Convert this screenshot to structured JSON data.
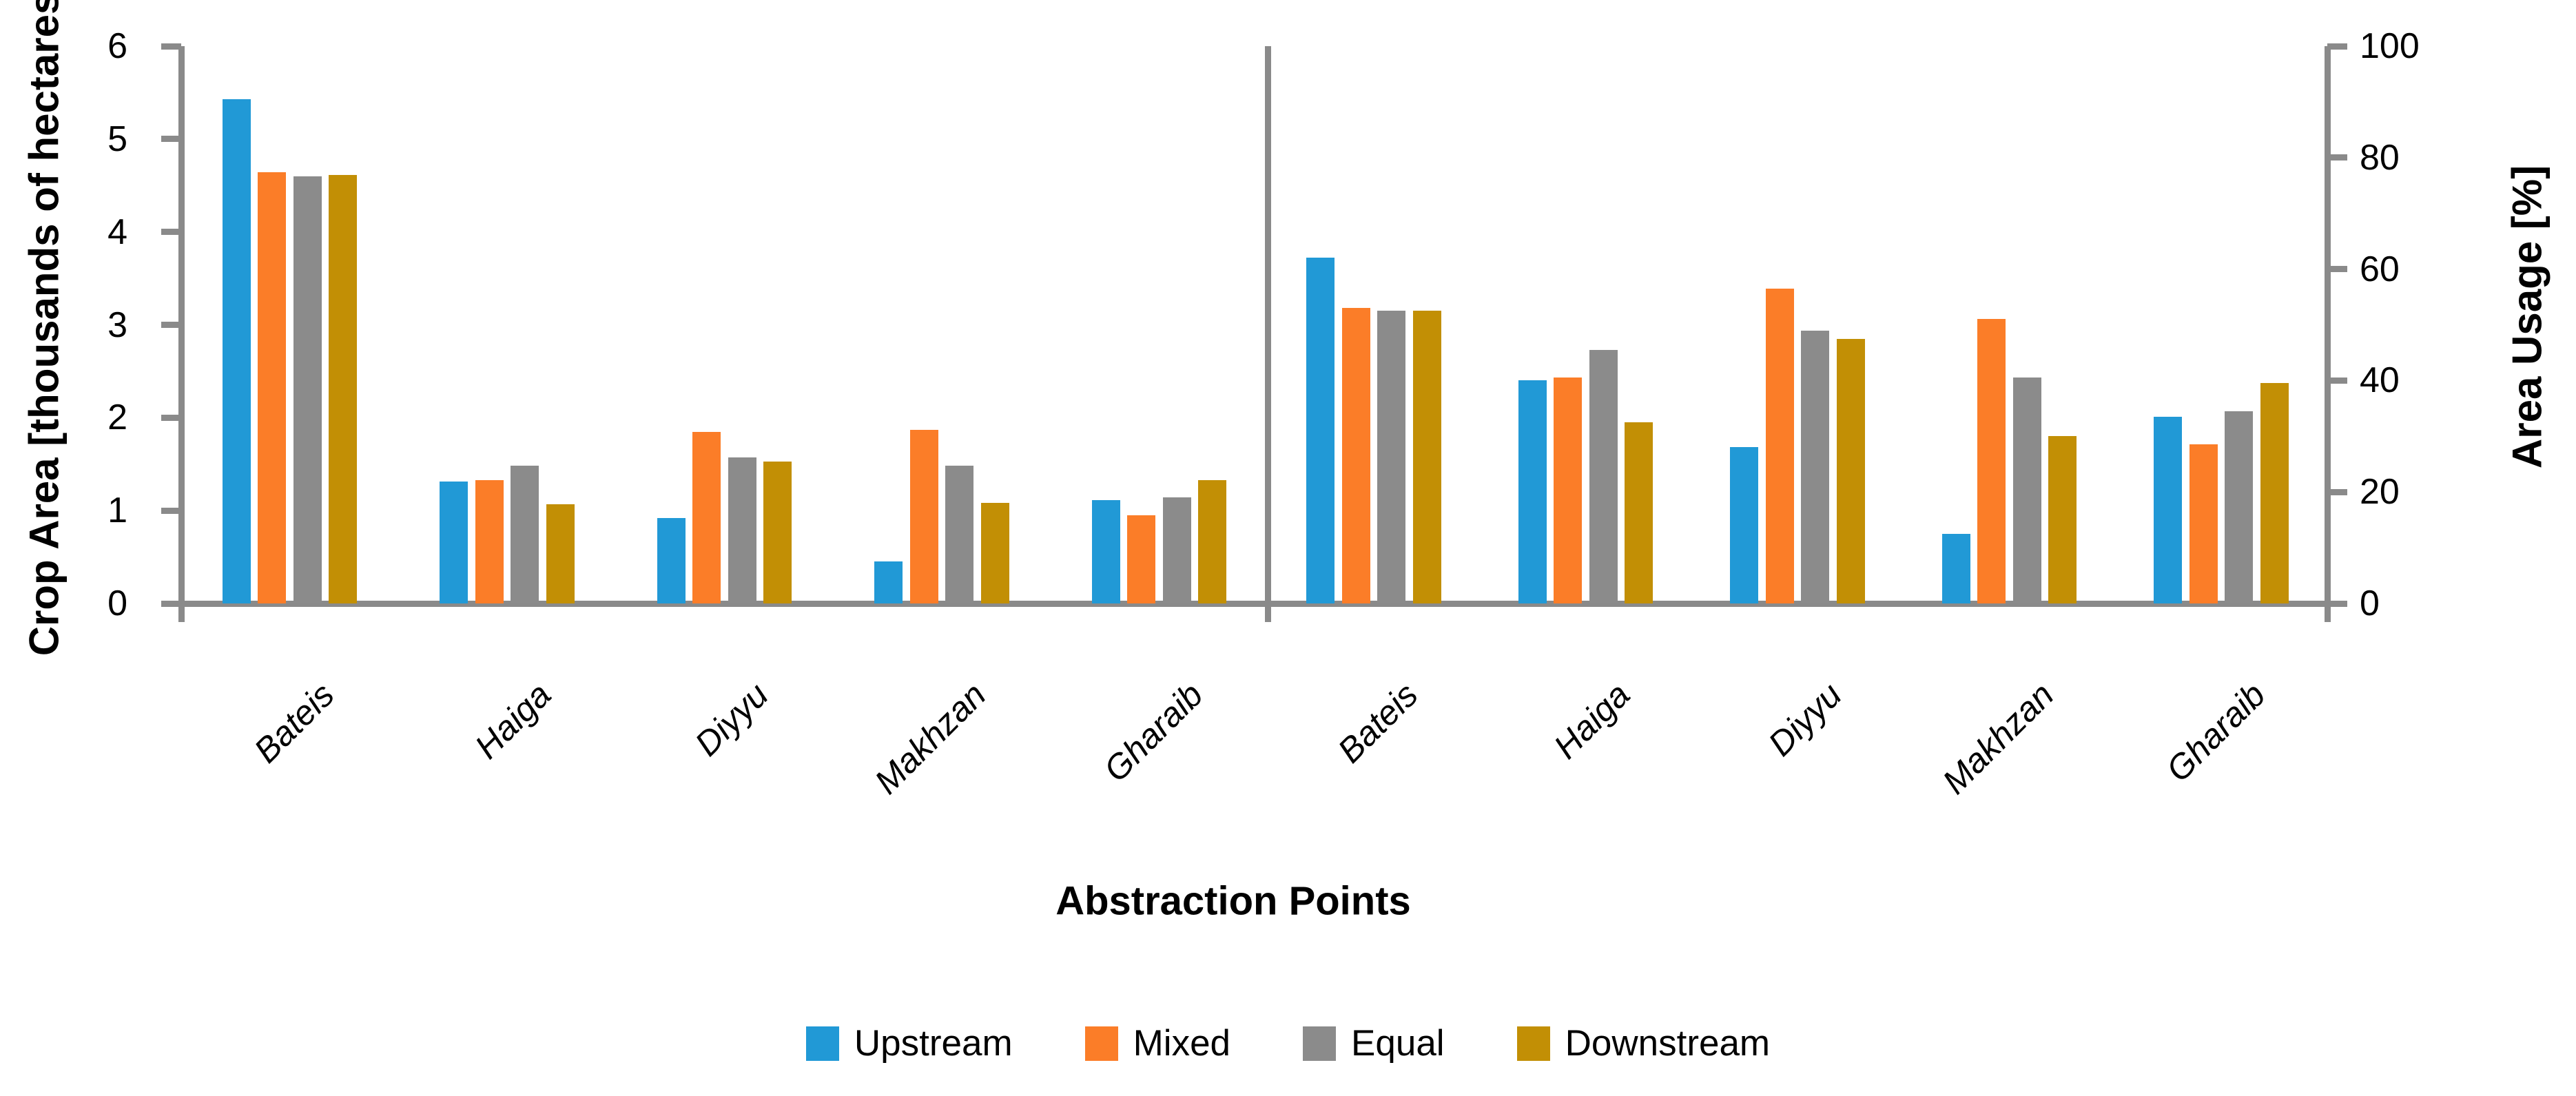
{
  "chart_data": {
    "type": "bar",
    "subtype": "grouped-dual-panel",
    "title": "",
    "xlabel": "Abstraction Points",
    "categories": [
      "Bateis",
      "Haiga",
      "Diyyu",
      "Makhzan",
      "Gharaib"
    ],
    "series_names": [
      "Upstream",
      "Mixed",
      "Equal",
      "Downstream"
    ],
    "series_colors": {
      "Upstream": "#2199D6",
      "Mixed": "#FB7D28",
      "Equal": "#8B8B8B",
      "Downstream": "#C28F05"
    },
    "grid": false,
    "legend_position": "bottom",
    "panels": [
      {
        "id": "crop-area",
        "axis_side": "left",
        "ylabel": "Crop Area [thousands of hectares]",
        "ylim": [
          0,
          6
        ],
        "yticks": [
          0,
          1,
          2,
          3,
          4,
          5,
          6
        ],
        "series": [
          {
            "name": "Upstream",
            "values": [
              5.43,
              1.31,
              0.92,
              0.45,
              1.11
            ]
          },
          {
            "name": "Mixed",
            "values": [
              4.64,
              1.33,
              1.85,
              1.87,
              0.95
            ]
          },
          {
            "name": "Equal",
            "values": [
              4.6,
              1.48,
              1.57,
              1.48,
              1.14
            ]
          },
          {
            "name": "Downstream",
            "values": [
              4.61,
              1.07,
              1.53,
              1.08,
              1.33
            ]
          }
        ]
      },
      {
        "id": "area-usage",
        "axis_side": "right",
        "ylabel": "Area Usage [%]",
        "ylim": [
          0,
          100
        ],
        "yticks": [
          0,
          20,
          40,
          60,
          80,
          100
        ],
        "series": [
          {
            "name": "Upstream",
            "values": [
              62,
              40,
              28,
              12.5,
              33.5
            ]
          },
          {
            "name": "Mixed",
            "values": [
              53,
              40.5,
              56.5,
              51,
              28.5
            ]
          },
          {
            "name": "Equal",
            "values": [
              52.5,
              45.5,
              49,
              40.5,
              34.5
            ]
          },
          {
            "name": "Downstream",
            "values": [
              52.5,
              32.5,
              47.5,
              30,
              39.5
            ]
          }
        ]
      }
    ],
    "legend": {
      "entries": [
        {
          "label": "Upstream",
          "color": "#2199D6"
        },
        {
          "label": "Mixed",
          "color": "#FB7D28"
        },
        {
          "label": "Equal",
          "color": "#8B8B8B"
        },
        {
          "label": "Downstream",
          "color": "#C28F05"
        }
      ]
    }
  },
  "colors": {
    "axis": "#8A8A8A",
    "text": "#000000",
    "background": "#FFFFFF"
  }
}
